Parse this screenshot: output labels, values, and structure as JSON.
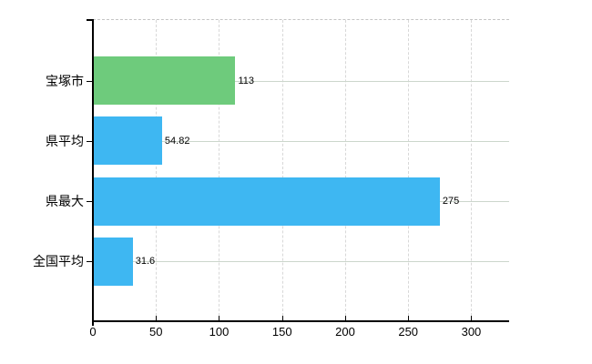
{
  "chart_data": {
    "type": "bar",
    "orientation": "horizontal",
    "title": "",
    "categories": [
      "宝塚市",
      "県平均",
      "県最大",
      "全国平均"
    ],
    "values": [
      113,
      54.82,
      275,
      31.6
    ],
    "value_labels": [
      "113",
      "54.82",
      "275",
      "31.6"
    ],
    "series": [
      {
        "name": "値",
        "values": [
          113,
          54.82,
          275,
          31.6
        ]
      }
    ],
    "bar_colors": [
      "#6ecb7c",
      "#3eb7f2",
      "#3eb7f2",
      "#3eb7f2"
    ],
    "xlim": [
      0,
      330
    ],
    "xticks": [
      0,
      50,
      100,
      150,
      200,
      250,
      300
    ],
    "xtick_labels": [
      "0",
      "50",
      "100",
      "150",
      "200",
      "250",
      "300"
    ],
    "grid": true,
    "legend": false,
    "colors": {
      "background": "#ffffff",
      "axis": "#000000",
      "text": "#000000",
      "vertical_grid": "#d8d8d8",
      "horizontal_grid": "#ccd6cc",
      "top_border": "#c4c4c4",
      "bar_blue": "#3eb7f2",
      "bar_green": "#6ecb7c"
    }
  }
}
